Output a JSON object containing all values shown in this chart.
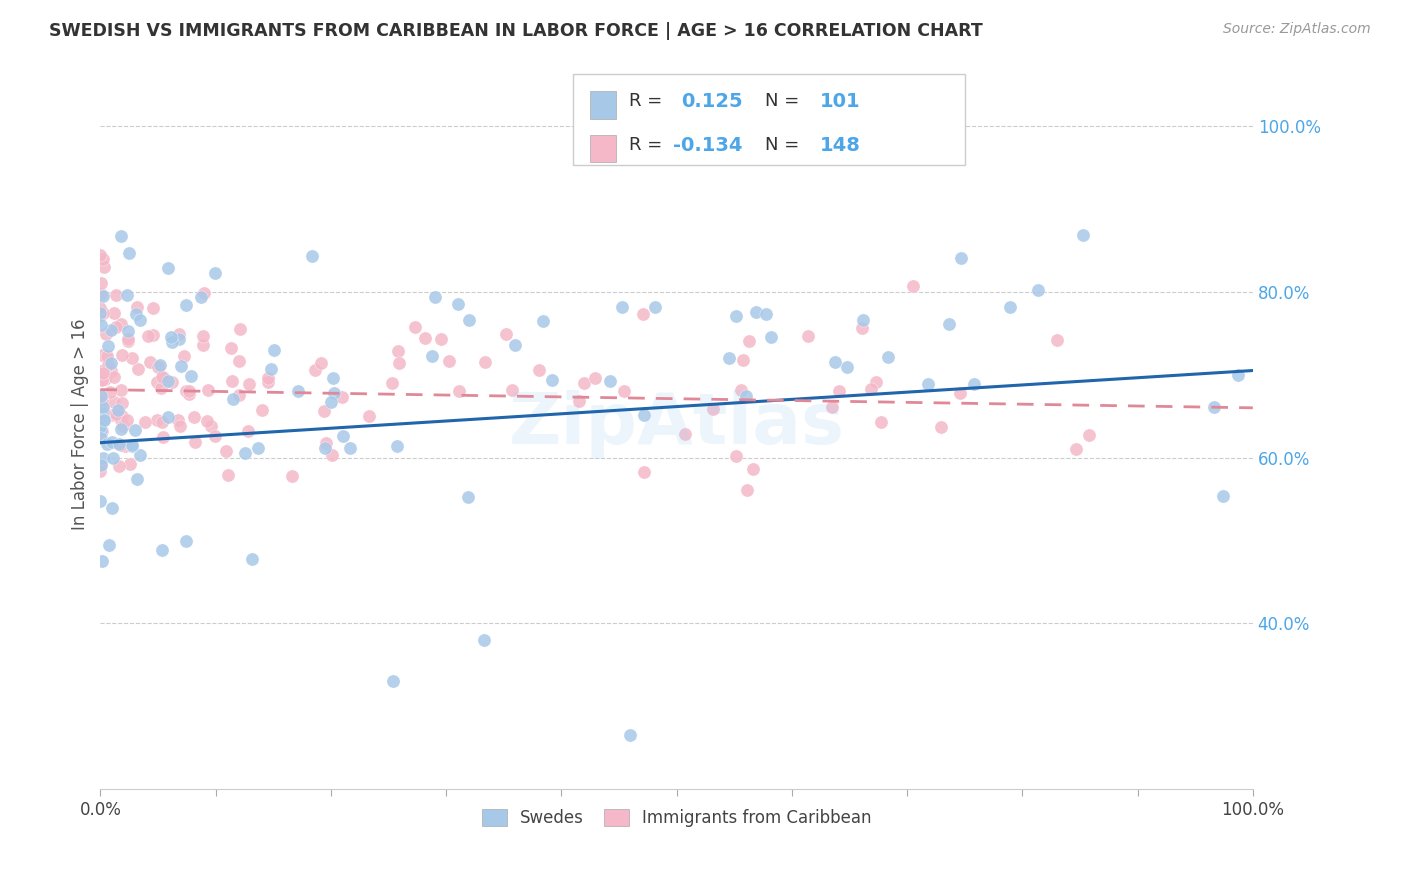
{
  "title": "SWEDISH VS IMMIGRANTS FROM CARIBBEAN IN LABOR FORCE | AGE > 16 CORRELATION CHART",
  "source": "Source: ZipAtlas.com",
  "ylabel": "In Labor Force | Age > 16",
  "watermark": "ZipAtlas",
  "blue_color": "#a8c8e8",
  "pink_color": "#f4b8c8",
  "trend_blue": "#2166ac",
  "trend_pink": "#e08898",
  "background": "#ffffff",
  "grid_color": "#cccccc",
  "right_axis_color": "#4da6e8",
  "title_color": "#333333",
  "source_color": "#999999",
  "xlim": [
    0,
    1
  ],
  "ylim": [
    0.2,
    1.08
  ],
  "y_ticks_right": [
    0.4,
    0.6,
    0.8,
    1.0
  ],
  "blue_trend_x": [
    0,
    1.0
  ],
  "blue_trend_y": [
    0.618,
    0.705
  ],
  "pink_trend_x": [
    0,
    1.0
  ],
  "pink_trend_y": [
    0.682,
    0.66
  ],
  "seed": 42
}
